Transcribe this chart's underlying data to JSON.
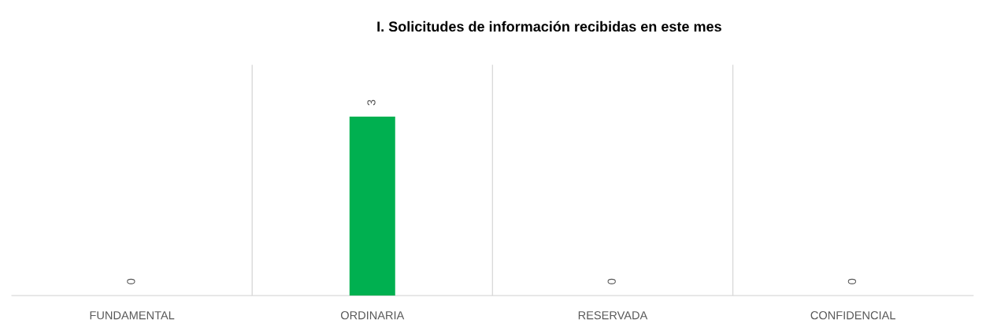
{
  "chart_data": {
    "type": "bar",
    "title": "I. Solicitudes de información recibidas en este mes",
    "categories": [
      "FUNDAMENTAL",
      "ORDINARIA",
      "RESERVADA",
      "CONFIDENCIAL"
    ],
    "values": [
      0,
      3,
      0,
      0
    ],
    "color": "#00b050",
    "data_labels": true,
    "grid": "x",
    "legend": false
  }
}
